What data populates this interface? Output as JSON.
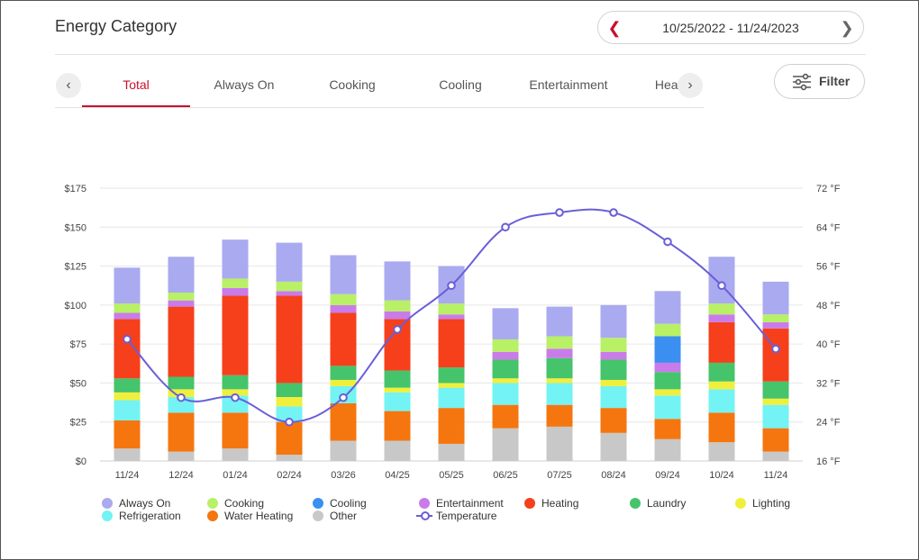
{
  "header": {
    "title": "Energy Category",
    "date_range": "10/25/2022 - 11/24/2023",
    "filter_label": "Filter"
  },
  "tabs": [
    {
      "label": "Total",
      "active": true
    },
    {
      "label": "Always On"
    },
    {
      "label": "Cooking"
    },
    {
      "label": "Cooling"
    },
    {
      "label": "Entertainment"
    },
    {
      "label": "Heating"
    }
  ],
  "icons": {
    "prev_date": "chevron-left-icon",
    "next_date": "chevron-right-icon",
    "tabs_prev": "chevron-left-icon",
    "tabs_next": "chevron-right-icon",
    "filter": "sliders-icon"
  },
  "colors": {
    "accent": "#c8102e",
    "temperature": "#6a5ed8"
  },
  "chart_data": {
    "type": "bar",
    "stacked": true,
    "categories": [
      "11/24",
      "12/24",
      "01/24",
      "02/24",
      "03/26",
      "04/25",
      "05/25",
      "06/25",
      "07/25",
      "08/24",
      "09/24",
      "10/24",
      "11/24"
    ],
    "y_left": {
      "ticks": [
        "$0",
        "$25",
        "$50",
        "$75",
        "$100",
        "$125",
        "$150",
        "$175"
      ],
      "range": [
        0,
        175
      ]
    },
    "y_right": {
      "ticks": [
        "16 °F",
        "24 °F",
        "32 °F",
        "40 °F",
        "48 °F",
        "56 °F",
        "64 °F",
        "72 °F"
      ],
      "range": [
        16,
        72
      ]
    },
    "grid": true,
    "legend_position": "bottom",
    "series": [
      {
        "name": "Other",
        "color": "#c8c8c8",
        "values": [
          8,
          6,
          8,
          4,
          13,
          13,
          11,
          21,
          22,
          18,
          14,
          12,
          6
        ]
      },
      {
        "name": "Water Heating",
        "color": "#f5760f",
        "values": [
          18,
          25,
          23,
          21,
          24,
          19,
          23,
          15,
          14,
          16,
          13,
          19,
          15
        ]
      },
      {
        "name": "Refrigeration",
        "color": "#73f3f3",
        "values": [
          13,
          10,
          11,
          10,
          11,
          12,
          13,
          14,
          14,
          14,
          15,
          15,
          15
        ]
      },
      {
        "name": "Lighting",
        "color": "#f0ef3c",
        "values": [
          5,
          5,
          4,
          6,
          4,
          3,
          3,
          3,
          3,
          4,
          4,
          5,
          4
        ]
      },
      {
        "name": "Laundry",
        "color": "#45c46b",
        "values": [
          9,
          8,
          9,
          9,
          9,
          11,
          10,
          12,
          13,
          13,
          11,
          12,
          11
        ]
      },
      {
        "name": "Heating",
        "color": "#f5401b",
        "values": [
          38,
          45,
          51,
          56,
          34,
          33,
          31,
          0,
          0,
          0,
          0,
          26,
          34
        ]
      },
      {
        "name": "Entertainment",
        "color": "#c97ce9",
        "values": [
          4,
          4,
          5,
          3,
          5,
          5,
          3,
          5,
          6,
          5,
          6,
          5,
          4
        ]
      },
      {
        "name": "Cooling",
        "color": "#3a8ff0",
        "values": [
          0,
          0,
          0,
          0,
          0,
          0,
          0,
          0,
          0,
          0,
          17,
          0,
          0
        ]
      },
      {
        "name": "Cooking",
        "color": "#b8f066",
        "values": [
          6,
          5,
          6,
          6,
          7,
          7,
          7,
          8,
          8,
          9,
          8,
          7,
          5
        ]
      },
      {
        "name": "Always On",
        "color": "#aaaaf0",
        "values": [
          23,
          23,
          25,
          25,
          25,
          25,
          24,
          20,
          19,
          21,
          21,
          30,
          21
        ]
      }
    ],
    "temperature": {
      "name": "Temperature",
      "color": "#6a5ed8",
      "values": [
        41,
        29,
        29,
        24,
        29,
        43,
        52,
        64,
        67,
        67,
        61,
        52,
        39
      ]
    },
    "legend": [
      {
        "name": "Always On",
        "color": "#aaaaf0",
        "kind": "dot"
      },
      {
        "name": "Cooking",
        "color": "#b8f066",
        "kind": "dot"
      },
      {
        "name": "Cooling",
        "color": "#3a8ff0",
        "kind": "dot"
      },
      {
        "name": "Entertainment",
        "color": "#c97ce9",
        "kind": "dot"
      },
      {
        "name": "Heating",
        "color": "#f5401b",
        "kind": "dot"
      },
      {
        "name": "Laundry",
        "color": "#45c46b",
        "kind": "dot"
      },
      {
        "name": "Lighting",
        "color": "#f0ef3c",
        "kind": "dot"
      },
      {
        "name": "Refrigeration",
        "color": "#73f3f3",
        "kind": "dot"
      },
      {
        "name": "Water Heating",
        "color": "#f5760f",
        "kind": "dot"
      },
      {
        "name": "Other",
        "color": "#c8c8c8",
        "kind": "dot"
      },
      {
        "name": "Temperature",
        "color": "#6a5ed8",
        "kind": "line"
      }
    ]
  }
}
